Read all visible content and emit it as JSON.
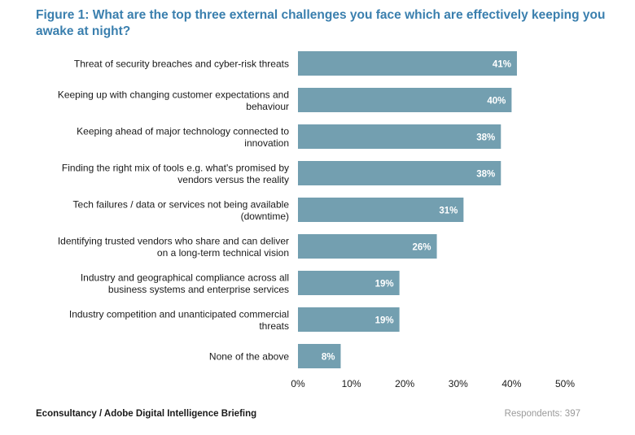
{
  "title": "Figure 1: What are the top three external challenges you face which are effectively keeping you awake at night?",
  "chart_data": {
    "type": "bar",
    "orientation": "horizontal",
    "categories": [
      [
        "Threat of security breaches and cyber-risk threats"
      ],
      [
        "Keeping up with changing customer expectations and",
        "behaviour"
      ],
      [
        "Keeping ahead of major technology connected to",
        "innovation"
      ],
      [
        "Finding the right mix of tools e.g. what's promised by",
        "vendors versus the reality"
      ],
      [
        "Tech failures / data or services not being available",
        "(downtime)"
      ],
      [
        "Identifying trusted vendors who share and can deliver",
        "on a long-term technical vision"
      ],
      [
        "Industry and geographical compliance across all",
        "business systems and enterprise services"
      ],
      [
        "Industry competition and unanticipated commercial",
        "threats"
      ],
      [
        "None of the above"
      ]
    ],
    "values": [
      41,
      40,
      38,
      38,
      31,
      26,
      19,
      19,
      8
    ],
    "value_labels": [
      "41%",
      "40%",
      "38%",
      "38%",
      "31%",
      "26%",
      "19%",
      "19%",
      "8%"
    ],
    "xlim": [
      0,
      50
    ],
    "xticks": [
      "0%",
      "10%",
      "20%",
      "30%",
      "40%",
      "50%"
    ],
    "grid": false,
    "bar_color": "#739fb0",
    "label_color": "#ffffff"
  },
  "footer": {
    "source": "Econsultancy / Adobe Digital Intelligence Briefing",
    "respondents": "Respondents: 397"
  }
}
